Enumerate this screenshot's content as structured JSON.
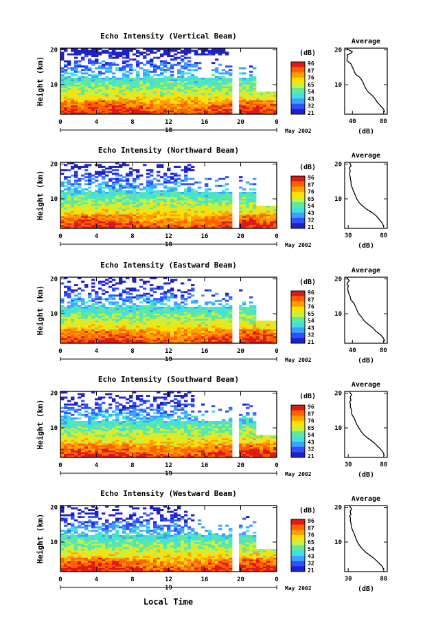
{
  "figure": {
    "xlabel": "Local Time",
    "colorbar_unit": "(dB)",
    "colorbar_ticks": [
      "96",
      "87",
      "76",
      "65",
      "54",
      "43",
      "32",
      "21"
    ],
    "colors": {
      "scale": [
        "#2020c8",
        "#3050ff",
        "#3ca0ff",
        "#40e0e0",
        "#60e8a0",
        "#c8f040",
        "#ffe000",
        "#ffa000",
        "#ff6000",
        "#e01818"
      ]
    }
  },
  "chart_data": [
    {
      "type": "heatmap",
      "title": "Echo Intensity (Vertical Beam)",
      "ylabel": "Height (km)",
      "x_ticks": [
        "0",
        "4",
        "8",
        "12",
        "16",
        "20",
        "0"
      ],
      "y_ticks": [
        "20",
        "10"
      ],
      "date_day": "18",
      "date_label": "May 2002",
      "xlim": [
        0,
        24
      ],
      "ylim": [
        1.5,
        20.5
      ],
      "profile": {
        "title": "Average",
        "xlabel": "(dB)",
        "x_ticks": [
          "40",
          "80"
        ],
        "xlim": [
          30,
          85
        ],
        "y_ticks": [
          "20",
          "10"
        ],
        "x": [
          82,
          80,
          76,
          72,
          69,
          65,
          60,
          57,
          55,
          53,
          50,
          47,
          44,
          42,
          41,
          40,
          38,
          35,
          33,
          33,
          34,
          33,
          38,
          40,
          35,
          33
        ],
        "y": [
          2,
          3,
          4,
          5,
          6,
          7,
          8,
          9,
          10,
          11,
          12,
          12.5,
          13,
          14,
          14.5,
          15,
          16,
          16.5,
          17,
          17.5,
          18,
          18.5,
          19,
          19.5,
          20,
          20.4
        ]
      }
    },
    {
      "type": "heatmap",
      "title": "Echo Intensity (Northward Beam)",
      "ylabel": "Height (km)",
      "x_ticks": [
        "0",
        "4",
        "8",
        "12",
        "16",
        "20",
        "0"
      ],
      "y_ticks": [
        "20",
        "10"
      ],
      "date_day": "18",
      "date_label": "May 2002",
      "xlim": [
        0,
        24
      ],
      "ylim": [
        1.5,
        20.5
      ],
      "profile": {
        "title": "Average",
        "xlabel": "(dB)",
        "x_ticks": [
          "30",
          "80"
        ],
        "xlim": [
          25,
          85
        ],
        "y_ticks": [
          "20",
          "10"
        ],
        "x": [
          80,
          78,
          74,
          70,
          64,
          56,
          50,
          45,
          42,
          40,
          38,
          36,
          35,
          34,
          34,
          33,
          33,
          32,
          32,
          33,
          32,
          32,
          34,
          33,
          32
        ],
        "y": [
          2,
          3,
          4,
          5,
          6,
          7,
          8,
          9,
          10,
          11,
          12,
          13,
          13.5,
          14,
          15,
          15.5,
          16,
          17,
          17.5,
          18,
          18.5,
          19,
          19.5,
          20,
          20.4
        ]
      }
    },
    {
      "type": "heatmap",
      "title": "Echo Intensity (Eastward Beam)",
      "ylabel": "Height (km)",
      "x_ticks": [
        "0",
        "4",
        "8",
        "12",
        "16",
        "20",
        "0"
      ],
      "y_ticks": [
        "20",
        "10"
      ],
      "date_day": "19",
      "date_label": "May 2002",
      "xlim": [
        0,
        24
      ],
      "ylim": [
        1.5,
        20.5
      ],
      "profile": {
        "title": "Average",
        "xlabel": "(dB)",
        "x_ticks": [
          "40",
          "80"
        ],
        "xlim": [
          30,
          85
        ],
        "y_ticks": [
          "20",
          "10"
        ],
        "x": [
          82,
          80,
          76,
          70,
          66,
          60,
          55,
          52,
          48,
          46,
          44,
          42,
          40,
          38,
          37,
          36,
          35,
          34,
          34,
          35,
          33,
          34,
          36,
          34,
          33
        ],
        "y": [
          2,
          3,
          4,
          5,
          6,
          7,
          8,
          9,
          10,
          11,
          12,
          13,
          13.5,
          14,
          15,
          15.5,
          16,
          17,
          17.5,
          18,
          18.5,
          19,
          19.5,
          20,
          20.4
        ]
      }
    },
    {
      "type": "heatmap",
      "title": "Echo Intensity (Southward Beam)",
      "ylabel": "Height (km)",
      "x_ticks": [
        "0",
        "4",
        "8",
        "12",
        "16",
        "20",
        "0"
      ],
      "y_ticks": [
        "20",
        "10"
      ],
      "date_day": "19",
      "date_label": "May 2002",
      "xlim": [
        0,
        24
      ],
      "ylim": [
        1.5,
        20.5
      ],
      "profile": {
        "title": "Average",
        "xlabel": "(dB)",
        "x_ticks": [
          "30",
          "80"
        ],
        "xlim": [
          25,
          85
        ],
        "y_ticks": [
          "20",
          "10"
        ],
        "x": [
          81,
          79,
          75,
          70,
          65,
          58,
          52,
          48,
          45,
          42,
          40,
          38,
          36,
          35,
          35,
          34,
          33,
          33,
          32,
          34,
          33,
          33,
          35,
          33,
          32
        ],
        "y": [
          2,
          3,
          4,
          5,
          6,
          7,
          8,
          9,
          10,
          11,
          12,
          13,
          13.5,
          14,
          15,
          15.5,
          16,
          17,
          17.5,
          18,
          18.5,
          19,
          19.5,
          20,
          20.4
        ]
      }
    },
    {
      "type": "heatmap",
      "title": "Echo Intensity (Westward Beam)",
      "ylabel": "Height (km)",
      "x_ticks": [
        "0",
        "4",
        "8",
        "12",
        "16",
        "20",
        "0"
      ],
      "y_ticks": [
        "20",
        "10"
      ],
      "date_day": "19",
      "date_label": "May 2002",
      "xlim": [
        0,
        24
      ],
      "ylim": [
        1.5,
        20.5
      ],
      "profile": {
        "title": "Average",
        "xlabel": "(dB)",
        "x_ticks": [
          "30",
          "80"
        ],
        "xlim": [
          25,
          85
        ],
        "y_ticks": [
          "20",
          "10"
        ],
        "x": [
          80,
          78,
          73,
          68,
          62,
          55,
          50,
          46,
          43,
          41,
          39,
          37,
          36,
          35,
          34,
          34,
          33,
          33,
          32,
          34,
          33,
          33,
          35,
          33,
          32
        ],
        "y": [
          2,
          3,
          4,
          5,
          6,
          7,
          8,
          9,
          10,
          11,
          12,
          13,
          13.5,
          14,
          15,
          15.5,
          16,
          17,
          17.5,
          18,
          18.5,
          19,
          19.5,
          20,
          20.4
        ]
      }
    }
  ]
}
